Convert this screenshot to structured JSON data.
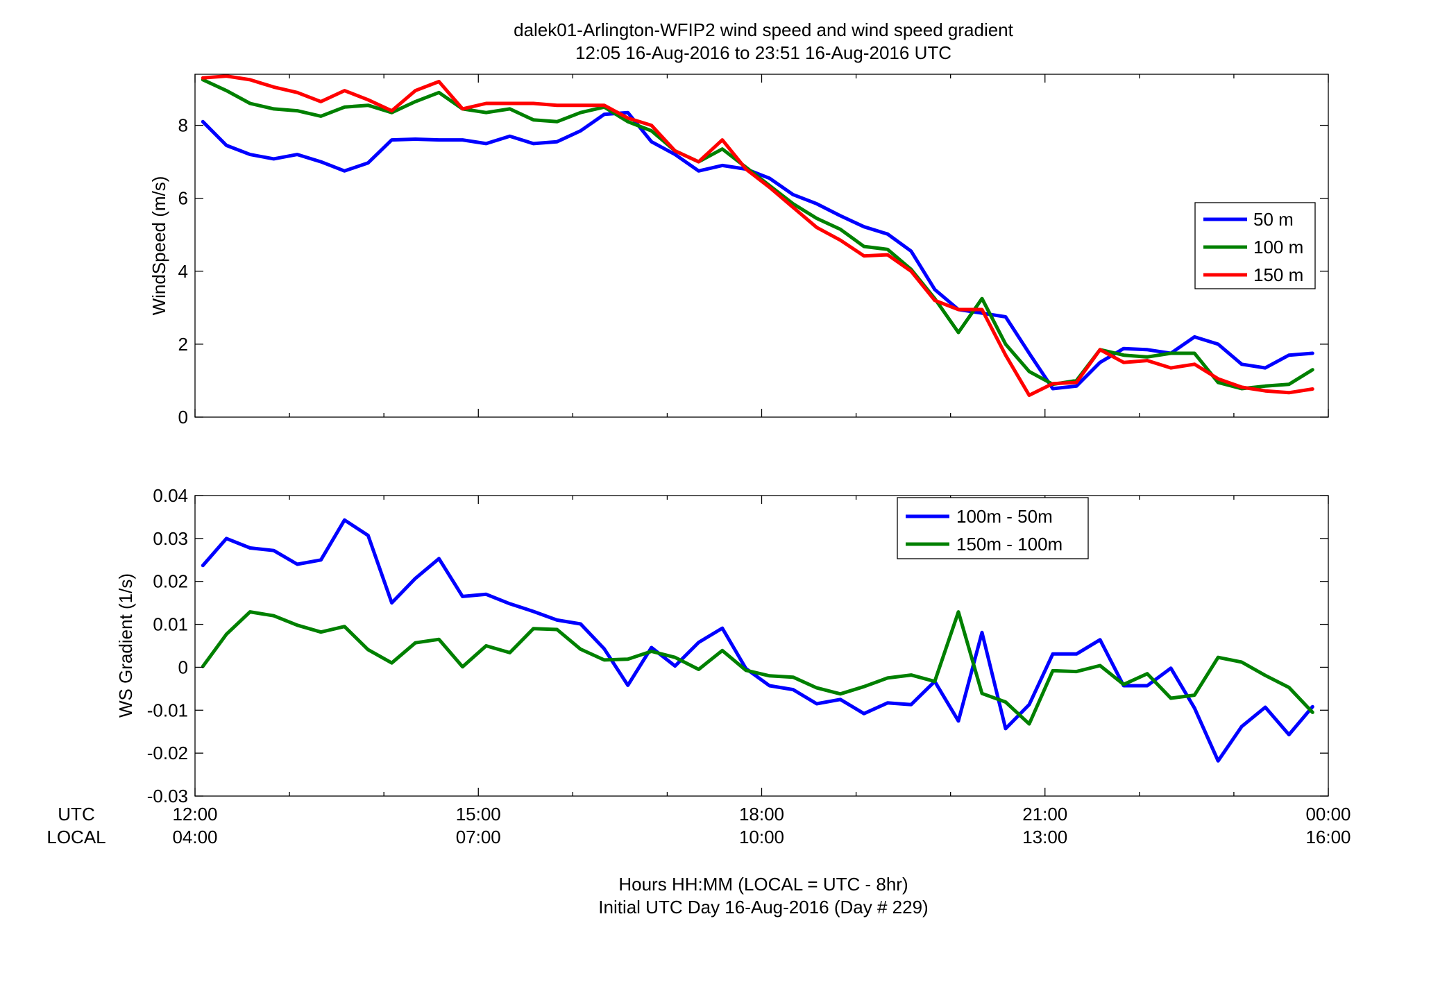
{
  "figure": {
    "title_line1": "dalek01-Arlington-WFIP2  wind speed and wind speed gradient",
    "title_line2": "12:05 16-Aug-2016 to 23:51 16-Aug-2016  UTC",
    "xlabel_line1": "Hours HH:MM  (LOCAL = UTC - 8hr)",
    "xlabel_line2": "Initial UTC Day 16-Aug-2016 (Day # 229)",
    "row_label_utc": "UTC",
    "row_label_local": "LOCAL",
    "xtick_utc": [
      "12:00",
      "15:00",
      "18:00",
      "21:00",
      "00:00"
    ],
    "xtick_local": [
      "04:00",
      "07:00",
      "10:00",
      "13:00",
      "16:00"
    ]
  },
  "chart_data": [
    {
      "type": "line",
      "ylabel": "WindSpeed (m/s)",
      "xlim": [
        12,
        24
      ],
      "ylim": [
        0,
        9.4
      ],
      "yticks": [
        0,
        2,
        4,
        6,
        8
      ],
      "ytick_labels": [
        "0",
        "2",
        "4",
        "6",
        "8"
      ],
      "grid": false,
      "legend_position": "right",
      "x": [
        12.083,
        12.333,
        12.583,
        12.833,
        13.083,
        13.333,
        13.583,
        13.833,
        14.083,
        14.333,
        14.583,
        14.833,
        15.083,
        15.333,
        15.583,
        15.833,
        16.083,
        16.333,
        16.583,
        16.833,
        17.083,
        17.333,
        17.583,
        17.833,
        18.083,
        18.333,
        18.583,
        18.833,
        19.083,
        19.333,
        19.583,
        19.833,
        20.083,
        20.333,
        20.583,
        20.833,
        21.083,
        21.333,
        21.583,
        21.833,
        22.083,
        22.333,
        22.583,
        22.833,
        23.083,
        23.333,
        23.583,
        23.833
      ],
      "series": [
        {
          "name": "50 m",
          "color": "#0000ff",
          "values": [
            8.1,
            7.45,
            7.2,
            7.08,
            7.2,
            7.0,
            6.75,
            6.97,
            7.6,
            7.62,
            7.6,
            7.6,
            7.5,
            7.7,
            7.5,
            7.55,
            7.85,
            8.3,
            8.35,
            7.55,
            7.2,
            6.75,
            6.9,
            6.8,
            6.55,
            6.1,
            5.85,
            5.52,
            5.22,
            5.02,
            4.55,
            3.5,
            2.95,
            2.85,
            2.75,
            1.75,
            0.78,
            0.85,
            1.5,
            1.88,
            1.85,
            1.75,
            2.2,
            2.0,
            1.45,
            1.35,
            1.7,
            1.75
          ]
        },
        {
          "name": "100 m",
          "color": "#008000",
          "values": [
            9.25,
            8.95,
            8.6,
            8.45,
            8.4,
            8.25,
            8.5,
            8.55,
            8.35,
            8.65,
            8.9,
            8.45,
            8.35,
            8.45,
            8.15,
            8.1,
            8.35,
            8.5,
            8.1,
            7.85,
            7.3,
            7.0,
            7.35,
            6.85,
            6.35,
            5.85,
            5.45,
            5.15,
            4.68,
            4.6,
            4.05,
            3.25,
            2.32,
            3.25,
            2.0,
            1.25,
            0.9,
            1.0,
            1.85,
            1.7,
            1.65,
            1.75,
            1.75,
            0.95,
            0.78,
            0.85,
            0.9,
            1.3
          ]
        },
        {
          "name": "150 m",
          "color": "#ff0000",
          "values": [
            9.3,
            9.35,
            9.25,
            9.05,
            8.9,
            8.65,
            8.95,
            8.7,
            8.4,
            8.95,
            9.2,
            8.45,
            8.6,
            8.6,
            8.6,
            8.55,
            8.55,
            8.55,
            8.2,
            8.0,
            7.3,
            7.0,
            7.6,
            6.8,
            6.3,
            5.75,
            5.2,
            4.85,
            4.42,
            4.45,
            4.0,
            3.2,
            2.95,
            2.95,
            1.7,
            0.6,
            0.92,
            0.95,
            1.85,
            1.5,
            1.55,
            1.35,
            1.45,
            1.05,
            0.82,
            0.72,
            0.67,
            0.77
          ]
        }
      ]
    },
    {
      "type": "line",
      "ylabel": "WS Gradient (1/s)",
      "xlim": [
        12,
        24
      ],
      "ylim": [
        -0.03,
        0.04
      ],
      "yticks": [
        -0.03,
        -0.02,
        -0.01,
        0,
        0.01,
        0.02,
        0.03,
        0.04
      ],
      "ytick_labels": [
        "-0.03",
        "-0.02",
        "-0.01",
        "0",
        "0.01",
        "0.02",
        "0.03",
        "0.04"
      ],
      "grid": false,
      "legend_position": "top-right",
      "x": [
        12.083,
        12.333,
        12.583,
        12.833,
        13.083,
        13.333,
        13.583,
        13.833,
        14.083,
        14.333,
        14.583,
        14.833,
        15.083,
        15.333,
        15.583,
        15.833,
        16.083,
        16.333,
        16.583,
        16.833,
        17.083,
        17.333,
        17.583,
        17.833,
        18.083,
        18.333,
        18.583,
        18.833,
        19.083,
        19.333,
        19.583,
        19.833,
        20.083,
        20.333,
        20.583,
        20.833,
        21.083,
        21.333,
        21.583,
        21.833,
        22.083,
        22.333,
        22.583,
        22.833,
        23.083,
        23.333,
        23.583,
        23.833
      ],
      "series": [
        {
          "name": "100m - 50m",
          "color": "#0000ff",
          "values": [
            0.0237,
            0.03,
            0.0278,
            0.0272,
            0.024,
            0.025,
            0.0343,
            0.0307,
            0.015,
            0.0207,
            0.0253,
            0.0165,
            0.017,
            0.0148,
            0.013,
            0.011,
            0.0101,
            0.0043,
            -0.0042,
            0.0046,
            0.0003,
            0.0058,
            0.0091,
            -0.0003,
            -0.0043,
            -0.0052,
            -0.0085,
            -0.0075,
            -0.0108,
            -0.0083,
            -0.0087,
            -0.0033,
            -0.0125,
            0.0081,
            -0.0143,
            -0.0087,
            0.0031,
            0.0031,
            0.0064,
            -0.0043,
            -0.0043,
            -0.0002,
            -0.0095,
            -0.0218,
            -0.0138,
            -0.0093,
            -0.0157,
            -0.0092
          ]
        },
        {
          "name": "150m - 100m",
          "color": "#008000",
          "values": [
            0.0002,
            0.0077,
            0.0129,
            0.012,
            0.0098,
            0.0082,
            0.0095,
            0.0041,
            0.001,
            0.0057,
            0.0065,
            0.0001,
            0.005,
            0.0034,
            0.009,
            0.0088,
            0.0042,
            0.0017,
            0.0019,
            0.0037,
            0.0023,
            -0.0005,
            0.0039,
            -0.0007,
            -0.002,
            -0.0023,
            -0.0048,
            -0.0062,
            -0.0045,
            -0.0025,
            -0.0018,
            -0.0033,
            0.0129,
            -0.0061,
            -0.0081,
            -0.0132,
            -0.0008,
            -0.001,
            0.0004,
            -0.004,
            -0.0015,
            -0.0072,
            -0.0065,
            0.0023,
            0.0012,
            -0.0019,
            -0.0047,
            -0.0105
          ]
        }
      ]
    }
  ]
}
